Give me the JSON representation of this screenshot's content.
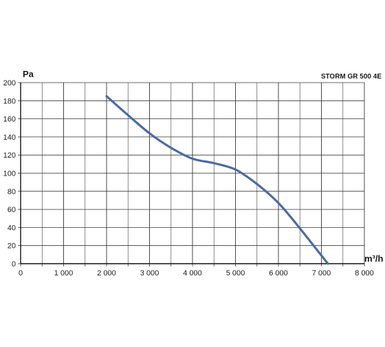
{
  "chart_data": {
    "type": "line",
    "title": "STORM GR 500 4E",
    "xlabel": "m³/h",
    "ylabel": "Pa",
    "xlim": [
      0,
      8000
    ],
    "ylim": [
      0,
      200
    ],
    "grid": true,
    "x_minor_step": 500,
    "y_step": 20,
    "x_ticks": [
      {
        "value": 0,
        "label": "0"
      },
      {
        "value": 1000,
        "label": "1 000"
      },
      {
        "value": 2000,
        "label": "2 000"
      },
      {
        "value": 3000,
        "label": "3 000"
      },
      {
        "value": 4000,
        "label": "4 000"
      },
      {
        "value": 5000,
        "label": "5 000"
      },
      {
        "value": 6000,
        "label": "6 000"
      },
      {
        "value": 7000,
        "label": "7 000"
      },
      {
        "value": 8000,
        "label": "8 000"
      }
    ],
    "y_ticks": [
      {
        "value": 0,
        "label": "0"
      },
      {
        "value": 20,
        "label": "20"
      },
      {
        "value": 40,
        "label": "40"
      },
      {
        "value": 60,
        "label": "60"
      },
      {
        "value": 80,
        "label": "80"
      },
      {
        "value": 100,
        "label": "100"
      },
      {
        "value": 120,
        "label": "120"
      },
      {
        "value": 140,
        "label": "140"
      },
      {
        "value": 160,
        "label": "160"
      },
      {
        "value": 180,
        "label": "180"
      },
      {
        "value": 200,
        "label": "200"
      }
    ],
    "series": [
      {
        "color": "#4a6aa5",
        "x": [
          2000,
          2500,
          3000,
          3500,
          4000,
          4500,
          5000,
          5500,
          6000,
          6500,
          7150
        ],
        "y": [
          185,
          164,
          144,
          128,
          116,
          111,
          104,
          88,
          67,
          39,
          0
        ]
      }
    ]
  }
}
